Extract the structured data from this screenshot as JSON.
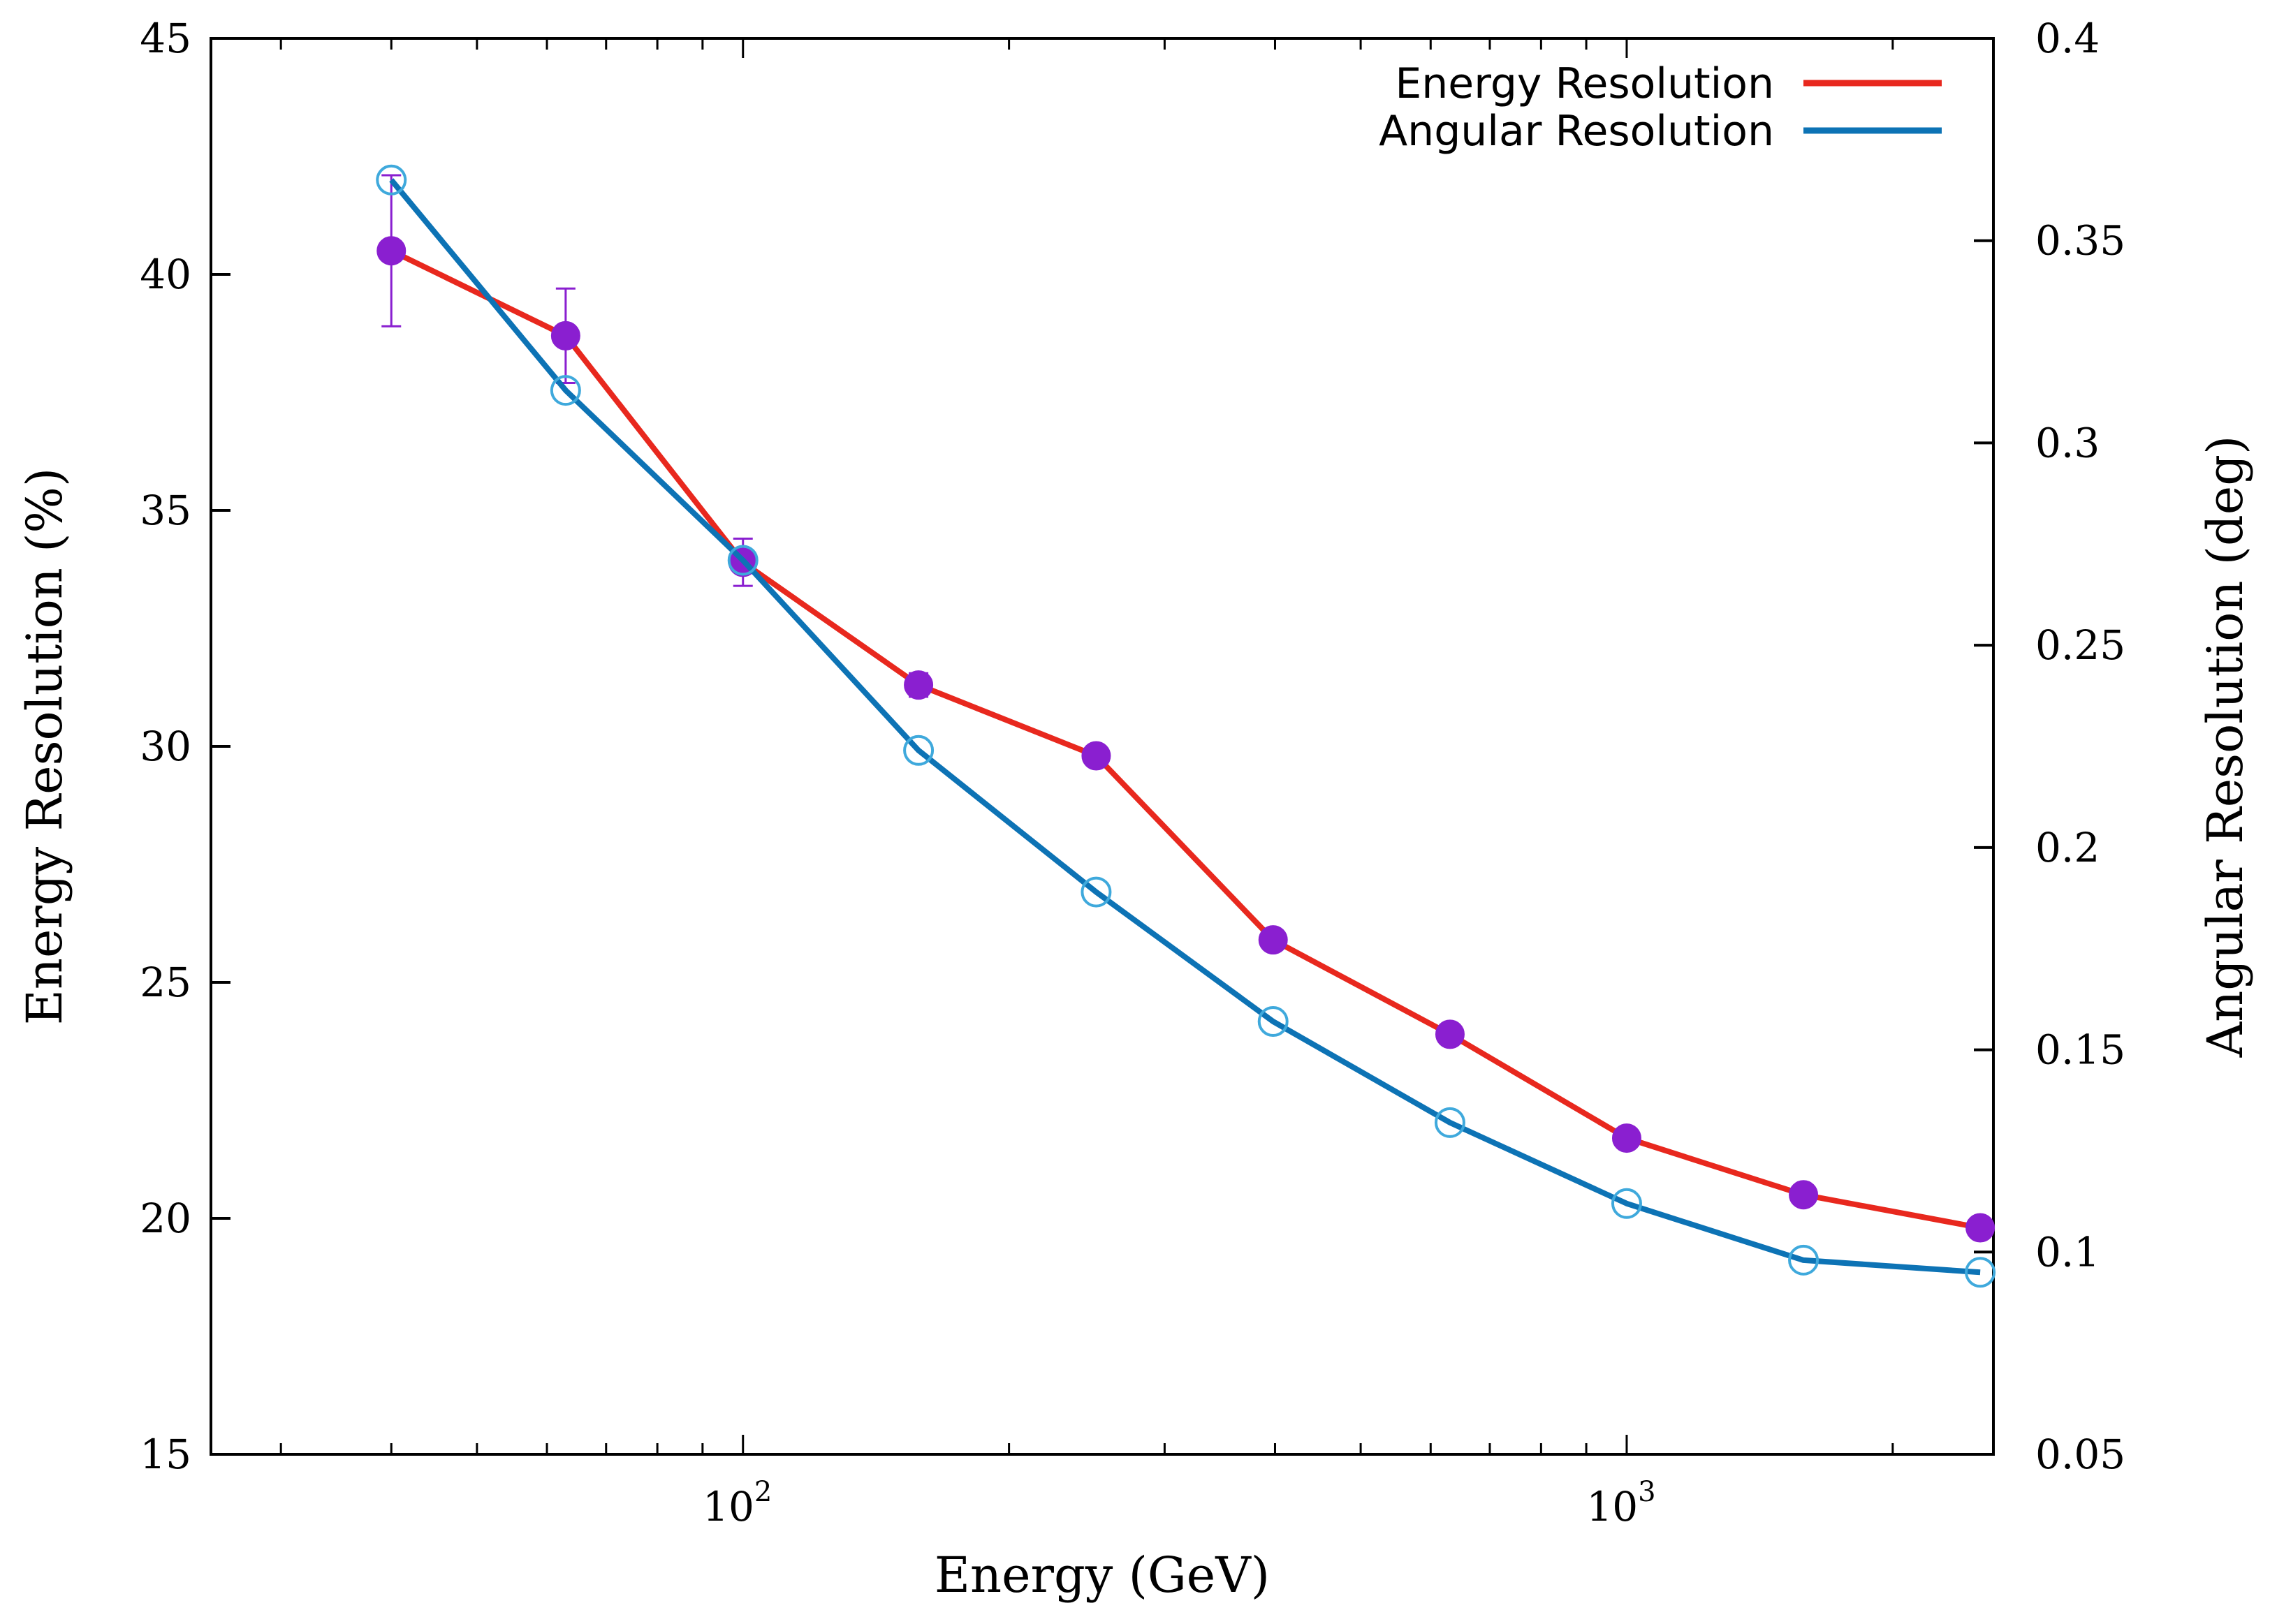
{
  "chart_data": {
    "type": "line",
    "title": "",
    "xlabel": "Energy (GeV)",
    "ylabel": "Energy Resolution (%)",
    "y2label": "Angular Resolution (deg)",
    "xscale": "log",
    "xlim": [
      25,
      2600
    ],
    "ylim": [
      15,
      45
    ],
    "y2lim": [
      0.05,
      0.4
    ],
    "yticks": [
      "15",
      "20",
      "25",
      "30",
      "35",
      "40",
      "45"
    ],
    "y2ticks": [
      "0.05",
      "0.1",
      "0.15",
      "0.2",
      "0.25",
      "0.3",
      "0.35",
      "0.4"
    ],
    "xticks": [
      {
        "base": "10",
        "exp": "2",
        "value": 100
      },
      {
        "base": "10",
        "exp": "3",
        "value": 1000
      }
    ],
    "legend_position": "top-right",
    "x": [
      40,
      63,
      100,
      158,
      251,
      398,
      631,
      1000,
      1585,
      2512
    ],
    "series": [
      {
        "name": "Energy Resolution",
        "axis": "left",
        "color": "#e8281e",
        "marker_color": "#8a1fd0",
        "marker": "filled-circle",
        "values": [
          40.5,
          38.7,
          33.9,
          31.3,
          29.8,
          25.9,
          23.9,
          21.7,
          20.5,
          19.8
        ],
        "error": [
          1.6,
          1.0,
          0.5,
          0.25,
          0.2,
          0.2,
          0.2,
          0.15,
          0.15,
          0.15
        ]
      },
      {
        "name": "Angular Resolution",
        "axis": "right",
        "color": "#0d73b5",
        "marker_color": "#3fa9dc",
        "marker": "open-circle",
        "values": [
          0.365,
          0.313,
          0.271,
          0.224,
          0.189,
          0.157,
          0.132,
          0.112,
          0.098,
          0.095
        ]
      }
    ]
  }
}
